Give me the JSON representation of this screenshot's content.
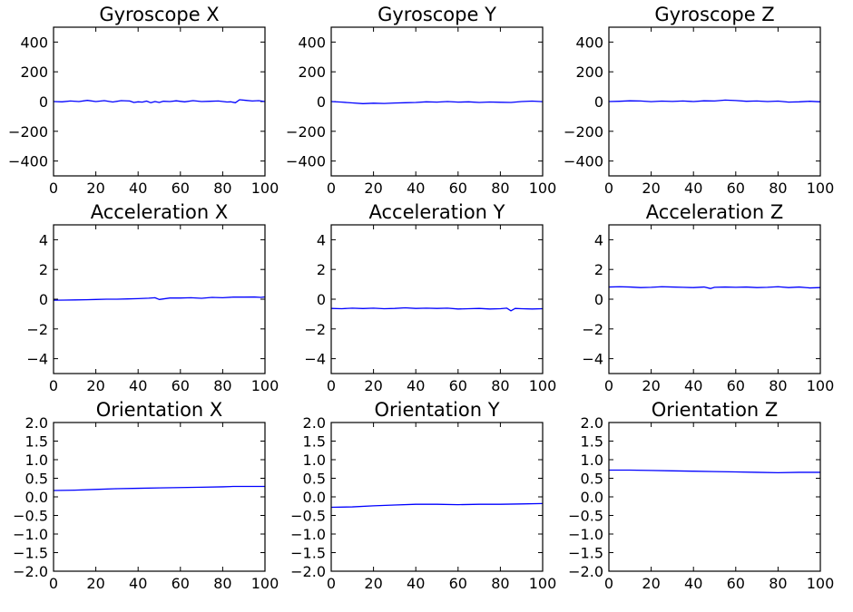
{
  "chart_data": [
    {
      "type": "line",
      "title": "Gyroscope X",
      "xlabel": "",
      "ylabel": "",
      "xlim": [
        0,
        100
      ],
      "ylim": [
        -500,
        500
      ],
      "x_ticks": [
        0,
        20,
        40,
        60,
        80,
        100
      ],
      "x_tick_labels": [
        "0",
        "20",
        "40",
        "60",
        "80",
        "100"
      ],
      "y_ticks": [
        400,
        200,
        0,
        -200,
        -400
      ],
      "y_tick_labels": [
        "400",
        "200",
        "0",
        "−200",
        "−400"
      ],
      "grid": false,
      "series_color": "#0000ff",
      "series": [
        {
          "x": [
            0,
            4,
            8,
            12,
            16,
            20,
            24,
            28,
            32,
            36,
            38,
            40,
            42,
            44,
            46,
            48,
            50,
            52,
            55,
            58,
            62,
            66,
            70,
            74,
            78,
            82,
            84,
            86,
            88,
            91,
            94,
            97,
            100
          ],
          "y": [
            0,
            -2,
            4,
            0,
            8,
            0,
            6,
            -3,
            6,
            4,
            -6,
            -2,
            -4,
            3,
            -8,
            0,
            -6,
            2,
            0,
            5,
            -2,
            6,
            0,
            2,
            4,
            -3,
            -2,
            -8,
            12,
            8,
            4,
            6,
            0
          ]
        }
      ]
    },
    {
      "type": "line",
      "title": "Gyroscope Y",
      "xlabel": "",
      "ylabel": "",
      "xlim": [
        0,
        100
      ],
      "ylim": [
        -500,
        500
      ],
      "x_ticks": [
        0,
        20,
        40,
        60,
        80,
        100
      ],
      "x_tick_labels": [
        "0",
        "20",
        "40",
        "60",
        "80",
        "100"
      ],
      "y_ticks": [
        400,
        200,
        0,
        -200,
        -400
      ],
      "y_tick_labels": [
        "400",
        "200",
        "0",
        "−200",
        "−400"
      ],
      "grid": false,
      "series_color": "#0000ff",
      "series": [
        {
          "x": [
            0,
            5,
            10,
            15,
            20,
            25,
            30,
            35,
            40,
            45,
            50,
            55,
            60,
            65,
            70,
            75,
            80,
            85,
            90,
            95,
            100
          ],
          "y": [
            0,
            -4,
            -9,
            -14,
            -11,
            -13,
            -10,
            -8,
            -6,
            -2,
            -4,
            0,
            -4,
            -2,
            -6,
            -3,
            -5,
            -6,
            0,
            3,
            -1
          ]
        }
      ]
    },
    {
      "type": "line",
      "title": "Gyroscope Z",
      "xlabel": "",
      "ylabel": "",
      "xlim": [
        0,
        100
      ],
      "ylim": [
        -500,
        500
      ],
      "x_ticks": [
        0,
        20,
        40,
        60,
        80,
        100
      ],
      "x_tick_labels": [
        "0",
        "20",
        "40",
        "60",
        "80",
        "100"
      ],
      "y_ticks": [
        400,
        200,
        0,
        -200,
        -400
      ],
      "y_tick_labels": [
        "400",
        "200",
        "0",
        "−200",
        "−400"
      ],
      "grid": false,
      "series_color": "#0000ff",
      "series": [
        {
          "x": [
            0,
            5,
            10,
            15,
            20,
            25,
            30,
            35,
            40,
            45,
            50,
            55,
            60,
            65,
            70,
            75,
            80,
            85,
            90,
            95,
            100
          ],
          "y": [
            0,
            2,
            5,
            4,
            -1,
            3,
            1,
            4,
            0,
            5,
            4,
            10,
            7,
            2,
            4,
            0,
            3,
            -4,
            -2,
            2,
            -2
          ]
        }
      ]
    },
    {
      "type": "line",
      "title": "Acceleration X",
      "xlabel": "",
      "ylabel": "",
      "xlim": [
        0,
        100
      ],
      "ylim": [
        -5,
        5
      ],
      "x_ticks": [
        0,
        20,
        40,
        60,
        80,
        100
      ],
      "x_tick_labels": [
        "0",
        "20",
        "40",
        "60",
        "80",
        "100"
      ],
      "y_ticks": [
        4,
        2,
        0,
        -2,
        -4
      ],
      "y_tick_labels": [
        "4",
        "2",
        "0",
        "−2",
        "−4"
      ],
      "grid": false,
      "series_color": "#0000ff",
      "series": [
        {
          "x": [
            0,
            5,
            10,
            15,
            20,
            25,
            30,
            35,
            40,
            45,
            48,
            50,
            55,
            60,
            65,
            70,
            75,
            80,
            85,
            90,
            95,
            98,
            100
          ],
          "y": [
            -0.07,
            -0.06,
            -0.05,
            -0.04,
            -0.02,
            0.0,
            0.0,
            0.02,
            0.04,
            0.07,
            0.1,
            -0.02,
            0.08,
            0.08,
            0.1,
            0.06,
            0.12,
            0.1,
            0.14,
            0.14,
            0.15,
            0.12,
            0.15
          ]
        }
      ]
    },
    {
      "type": "line",
      "title": "Acceleration Y",
      "xlabel": "",
      "ylabel": "",
      "xlim": [
        0,
        100
      ],
      "ylim": [
        -5,
        5
      ],
      "x_ticks": [
        0,
        20,
        40,
        60,
        80,
        100
      ],
      "x_tick_labels": [
        "0",
        "20",
        "40",
        "60",
        "80",
        "100"
      ],
      "y_ticks": [
        4,
        2,
        0,
        -2,
        -4
      ],
      "y_tick_labels": [
        "4",
        "2",
        "0",
        "−2",
        "−4"
      ],
      "grid": false,
      "series_color": "#0000ff",
      "series": [
        {
          "x": [
            0,
            5,
            10,
            15,
            20,
            25,
            30,
            35,
            40,
            45,
            50,
            55,
            60,
            65,
            70,
            75,
            80,
            83,
            85,
            87,
            90,
            95,
            100
          ],
          "y": [
            -0.62,
            -0.64,
            -0.6,
            -0.63,
            -0.6,
            -0.64,
            -0.62,
            -0.58,
            -0.62,
            -0.6,
            -0.62,
            -0.6,
            -0.66,
            -0.64,
            -0.62,
            -0.66,
            -0.64,
            -0.6,
            -0.78,
            -0.62,
            -0.64,
            -0.66,
            -0.64
          ]
        }
      ]
    },
    {
      "type": "line",
      "title": "Acceleration Z",
      "xlabel": "",
      "ylabel": "",
      "xlim": [
        0,
        100
      ],
      "ylim": [
        -5,
        5
      ],
      "x_ticks": [
        0,
        20,
        40,
        60,
        80,
        100
      ],
      "x_tick_labels": [
        "0",
        "20",
        "40",
        "60",
        "80",
        "100"
      ],
      "y_ticks": [
        4,
        2,
        0,
        -2,
        -4
      ],
      "y_tick_labels": [
        "4",
        "2",
        "0",
        "−2",
        "−4"
      ],
      "grid": false,
      "series_color": "#0000ff",
      "series": [
        {
          "x": [
            0,
            5,
            10,
            15,
            20,
            25,
            30,
            35,
            40,
            45,
            48,
            50,
            55,
            60,
            65,
            70,
            75,
            80,
            85,
            90,
            95,
            100
          ],
          "y": [
            0.82,
            0.84,
            0.82,
            0.78,
            0.8,
            0.84,
            0.82,
            0.8,
            0.78,
            0.82,
            0.72,
            0.8,
            0.82,
            0.8,
            0.82,
            0.78,
            0.8,
            0.84,
            0.78,
            0.82,
            0.76,
            0.78
          ]
        }
      ]
    },
    {
      "type": "line",
      "title": "Orientation X",
      "xlabel": "",
      "ylabel": "",
      "xlim": [
        0,
        100
      ],
      "ylim": [
        -2.0,
        2.0
      ],
      "x_ticks": [
        0,
        20,
        40,
        60,
        80,
        100
      ],
      "x_tick_labels": [
        "0",
        "20",
        "40",
        "60",
        "80",
        "100"
      ],
      "y_ticks": [
        2.0,
        1.5,
        1.0,
        0.5,
        0.0,
        -0.5,
        -1.0,
        -1.5,
        -2.0
      ],
      "y_tick_labels": [
        "2.0",
        "1.5",
        "1.0",
        "0.5",
        "0.0",
        "−0.5",
        "−1.0",
        "−1.5",
        "−2.0"
      ],
      "grid": false,
      "series_color": "#0000ff",
      "series": [
        {
          "x": [
            0,
            10,
            20,
            30,
            40,
            50,
            60,
            70,
            80,
            85,
            90,
            100
          ],
          "y": [
            0.17,
            0.18,
            0.2,
            0.22,
            0.23,
            0.24,
            0.25,
            0.26,
            0.27,
            0.28,
            0.28,
            0.28
          ]
        }
      ]
    },
    {
      "type": "line",
      "title": "Orientation Y",
      "xlabel": "",
      "ylabel": "",
      "xlim": [
        0,
        100
      ],
      "ylim": [
        -2.0,
        2.0
      ],
      "x_ticks": [
        0,
        20,
        40,
        60,
        80,
        100
      ],
      "x_tick_labels": [
        "0",
        "20",
        "40",
        "60",
        "80",
        "100"
      ],
      "y_ticks": [
        2.0,
        1.5,
        1.0,
        0.5,
        0.0,
        -0.5,
        -1.0,
        -1.5,
        -2.0
      ],
      "y_tick_labels": [
        "2.0",
        "1.5",
        "1.0",
        "0.5",
        "0.0",
        "−0.5",
        "−1.0",
        "−1.5",
        "−2.0"
      ],
      "grid": false,
      "series_color": "#0000ff",
      "series": [
        {
          "x": [
            0,
            10,
            20,
            30,
            40,
            50,
            60,
            70,
            80,
            90,
            100
          ],
          "y": [
            -0.28,
            -0.27,
            -0.24,
            -0.22,
            -0.2,
            -0.2,
            -0.21,
            -0.2,
            -0.2,
            -0.19,
            -0.18
          ]
        }
      ]
    },
    {
      "type": "line",
      "title": "Orientation Z",
      "xlabel": "",
      "ylabel": "",
      "xlim": [
        0,
        100
      ],
      "ylim": [
        -2.0,
        2.0
      ],
      "x_ticks": [
        0,
        20,
        40,
        60,
        80,
        100
      ],
      "x_tick_labels": [
        "0",
        "20",
        "40",
        "60",
        "80",
        "100"
      ],
      "y_ticks": [
        2.0,
        1.5,
        1.0,
        0.5,
        0.0,
        -0.5,
        -1.0,
        -1.5,
        -2.0
      ],
      "y_tick_labels": [
        "2.0",
        "1.5",
        "1.0",
        "0.5",
        "0.0",
        "−0.5",
        "−1.0",
        "−1.5",
        "−2.0"
      ],
      "grid": false,
      "series_color": "#0000ff",
      "series": [
        {
          "x": [
            0,
            10,
            20,
            30,
            40,
            50,
            60,
            70,
            80,
            90,
            100
          ],
          "y": [
            0.72,
            0.72,
            0.71,
            0.7,
            0.69,
            0.68,
            0.67,
            0.66,
            0.65,
            0.66,
            0.66
          ]
        }
      ]
    }
  ]
}
